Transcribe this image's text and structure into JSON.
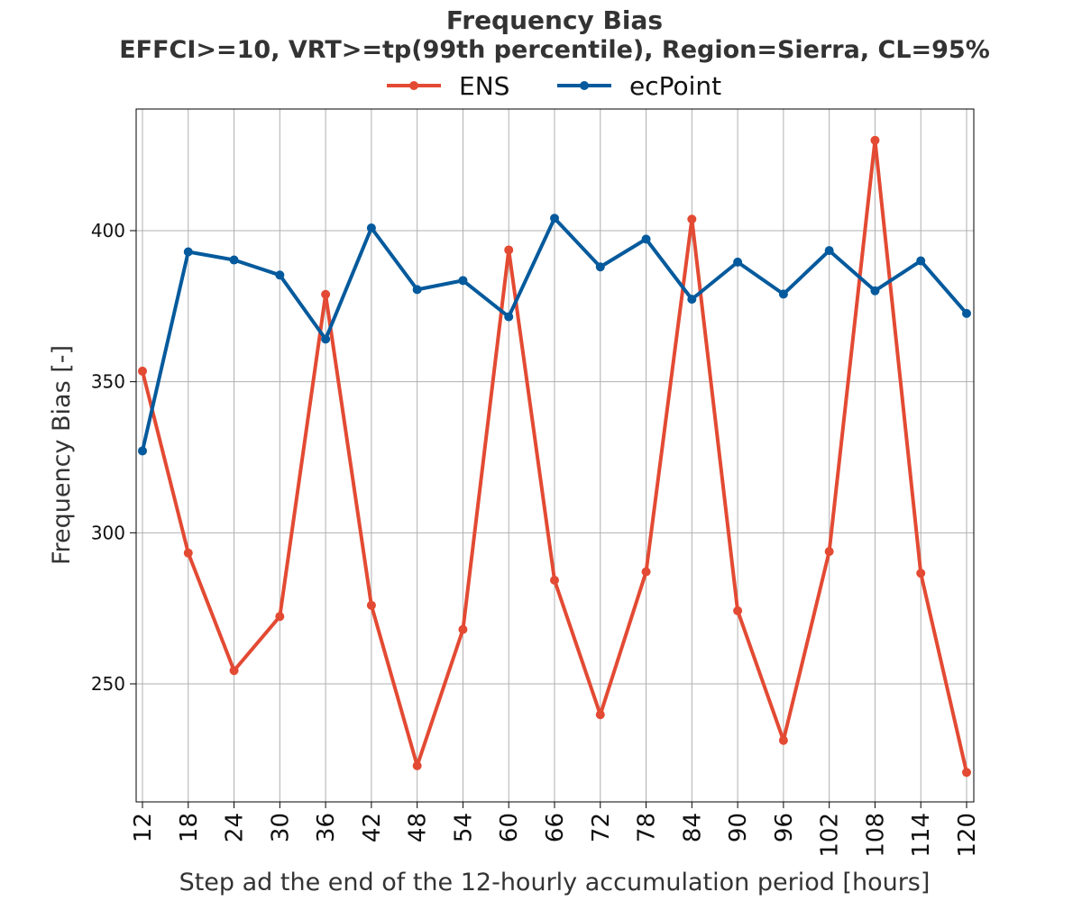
{
  "chart_data": {
    "type": "line",
    "title": "Frequency Bias",
    "subtitle": "EFFCI>=10, VRT>=tp(99th percentile), Region=Sierra, CL=95%",
    "xlabel": "Step ad the end of the 12-hourly accumulation period [hours]",
    "ylabel": "Frequency Bias [-]",
    "x": [
      12,
      18,
      24,
      30,
      36,
      42,
      48,
      54,
      60,
      66,
      72,
      78,
      84,
      90,
      96,
      102,
      108,
      114,
      120
    ],
    "xticks": [
      "12",
      "18",
      "24",
      "30",
      "36",
      "42",
      "48",
      "54",
      "60",
      "66",
      "72",
      "78",
      "84",
      "90",
      "96",
      "102",
      "108",
      "114",
      "120"
    ],
    "yticks": [
      250,
      300,
      350,
      400
    ],
    "ylim": [
      210,
      440
    ],
    "grid": true,
    "legend_position": "top-center",
    "series": [
      {
        "name": "ENS",
        "color": "#e34a33",
        "values": [
          353.5,
          293.3,
          254.4,
          272.3,
          378.9,
          276.0,
          222.9,
          268.0,
          393.6,
          284.3,
          239.8,
          287.1,
          403.8,
          274.2,
          231.3,
          293.8,
          429.9,
          286.6,
          220.7
        ]
      },
      {
        "name": "ecPoint",
        "color": "#045a9c",
        "values": [
          327.1,
          393.0,
          390.3,
          385.3,
          364.1,
          400.9,
          380.5,
          383.5,
          371.5,
          404.1,
          388.0,
          397.2,
          377.3,
          389.6,
          379.0,
          393.4,
          380.1,
          390.0,
          372.6
        ]
      }
    ]
  }
}
